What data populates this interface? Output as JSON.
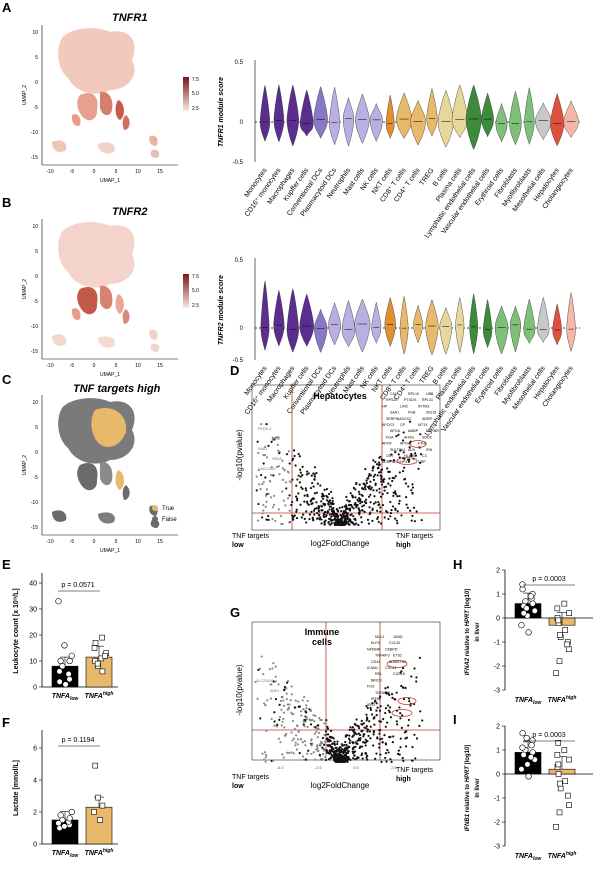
{
  "panels": {
    "A": {
      "label": "A",
      "title": "TNFR1",
      "xaxis": "UMAP_1",
      "yaxis": "UMAP_2",
      "colorbar": [
        "7.5",
        "5.0",
        "2.5"
      ],
      "xticks": [
        "-10",
        "-5",
        "0",
        "5",
        "10",
        "15"
      ],
      "yticks": [
        "10",
        "5",
        "0",
        "-5",
        "-10",
        "-15"
      ]
    },
    "B": {
      "label": "B",
      "title": "TNFR2",
      "xaxis": "UMAP_1",
      "yaxis": "UMAP_2",
      "colorbar": [
        "7.5",
        "5.0",
        "2.5"
      ],
      "xticks": [
        "-10",
        "-5",
        "0",
        "5",
        "10",
        "15"
      ],
      "yticks": [
        "10",
        "5",
        "0",
        "-5",
        "-10",
        "-15"
      ]
    },
    "C": {
      "label": "C",
      "title": "TNF targets high",
      "xaxis": "UMAP_1",
      "yaxis": "UMAP_2",
      "legend": [
        {
          "name": "True",
          "color": "#e8b96b"
        },
        {
          "name": "False",
          "color": "#6b6b6b"
        }
      ],
      "xticks": [
        "-10",
        "-5",
        "0",
        "5",
        "10",
        "15"
      ],
      "yticks": [
        "10",
        "5",
        "0",
        "-5",
        "-10",
        "-15"
      ]
    },
    "D": {
      "label": "D",
      "title": "Hepatocytes",
      "xlabel": "log2FoldChange",
      "ylabel": "-log10(pvalue)",
      "left": "TNF targets",
      "left_b": "low",
      "right": "TNF targets",
      "right_b": "high",
      "genes_right": [
        "CIU",
        "RPS23",
        "HP",
        "SAA1",
        "SERPINA3",
        "APOC3",
        "APOA",
        "FGA",
        "APOF",
        "SULT2A1",
        "OGT",
        "SERPINC1",
        "RPL10",
        "PTGDS",
        "LINC",
        "FGB",
        "CXC",
        "CP",
        "AMBP",
        "AHSG",
        "APOH",
        "ALB",
        "HLA-B",
        "HPX",
        "UBB",
        "RPL31",
        "IFITM3",
        "ISG15",
        "ADRP",
        "MT1X",
        "MTRNR",
        "SOD2",
        "FTH1",
        "IFI6",
        "C3",
        "CRP"
      ],
      "genes_left": [
        "PKD1L3",
        "CPM",
        "NAB1",
        "NR4A",
        "LINC01057"
      ]
    },
    "E": {
      "label": "E",
      "ylabel": "Leukocyte count [x 10⁹/L]",
      "pvalue": "p = 0.0571",
      "yticks": [
        "0",
        "10",
        "20",
        "30",
        "40"
      ]
    },
    "F": {
      "label": "F",
      "ylabel": "Lactate [mmol/L]",
      "pvalue": "p = 0.1194",
      "yticks": [
        "0",
        "2",
        "4",
        "6"
      ]
    },
    "G": {
      "label": "G",
      "title": "Immune",
      "title_b": "cells",
      "xlabel": "log2FoldChange",
      "ylabel": "-log10(pvalue)",
      "left": "TNF targets",
      "left_b": "low",
      "right": "TNF targets",
      "right_b": "high",
      "genes_right": [
        "MCL1",
        "KLF6",
        "NFKBIA",
        "TNFAIP3",
        "CD44",
        "ICAM1",
        "REL",
        "BIRC3",
        "FOS",
        "TNFAIP2",
        "IRF1",
        "IER3",
        "JUND",
        "CCL20",
        "CEBPD",
        "ETS2",
        "ADAMTS9",
        "CXCL1",
        "CXCL8"
      ],
      "genes_left": [
        "SLC22A16",
        "ANK1"
      ],
      "xticks": [
        "-5.0",
        "-2.5",
        "0.0",
        "2.5"
      ]
    },
    "H": {
      "label": "H",
      "ylabel_a": "IFNA2",
      "ylabel_b": " relative to ",
      "ylabel_c": "HPRT",
      "ylabel_d": " [log10]",
      "ylabel_e": "in liver",
      "pvalue": "p = 0.0003",
      "yticks": [
        "2",
        "1",
        "0",
        "-1",
        "-2",
        "-3"
      ]
    },
    "I": {
      "label": "I",
      "ylabel_a": "IFNB1",
      "ylabel_b": " relative to ",
      "ylabel_c": "HPRT",
      "ylabel_d": " [log10]",
      "ylabel_e": "in liver",
      "pvalue": "p = 0.0003",
      "yticks": [
        "2",
        "1",
        "0",
        "-1",
        "-2",
        "-3"
      ]
    }
  },
  "groups": {
    "low": "TNFA",
    "low_sub": "low",
    "high": "TNFA",
    "high_sub": "high"
  },
  "violin": {
    "cell_types": [
      "Monocytes",
      "CD16⁺ monocytes",
      "Macrophages",
      "Kupffer cells",
      "Conventional DCs",
      "Plasmacytoid DCs",
      "Neutrophils",
      "Mast cells",
      "NK cells",
      "NKT cells",
      "CD8⁺ T cells",
      "CD4⁺ T cells",
      "TREG",
      "B cells",
      "Plasma cells",
      "Lymphatic endothelial cells",
      "Vascular endothelial cells",
      "Erythroid cells",
      "Fibroblasts",
      "Myofibroblasts",
      "Mesothelial cells",
      "Hepatocytes",
      "Cholangiocytes"
    ],
    "colors": [
      "#5b2d8e",
      "#5b2d8e",
      "#5b2d8e",
      "#5b2d8e",
      "#8a78c4",
      "#b9afe0",
      "#b9afe0",
      "#b9afe0",
      "#b9afe0",
      "#e09030",
      "#e8b96b",
      "#e8b96b",
      "#e8b96b",
      "#e8d79b",
      "#e8d79b",
      "#3d8a3a",
      "#3d8a3a",
      "#7ec07a",
      "#7ec07a",
      "#7ec07a",
      "#c8c8c8",
      "#e0503d",
      "#f5b8a8"
    ],
    "tnfr1": {
      "ylabel": "TNFR1 module score",
      "yticks": [
        "0.5",
        "0",
        "-0.5"
      ],
      "ylim": [
        -0.5,
        0.5
      ]
    },
    "tnfr2": {
      "ylabel": "TNFR2 module score",
      "yticks": [
        "0.5",
        "0",
        "-0.5"
      ],
      "ylim": [
        -0.5,
        0.5
      ]
    }
  },
  "chart_data": [
    {
      "type": "bar",
      "title": "Leukocyte count",
      "categories": [
        "TNFA low",
        "TNFA high"
      ],
      "values": [
        8,
        11.5
      ],
      "ylim": [
        0,
        40
      ],
      "ylabel": "Leukocyte count [x 10^9/L]"
    },
    {
      "type": "bar",
      "title": "Lactate",
      "categories": [
        "TNFA low",
        "TNFA high"
      ],
      "values": [
        1.5,
        2.3
      ],
      "ylim": [
        0,
        6
      ],
      "ylabel": "Lactate [mmol/L]"
    },
    {
      "type": "bar",
      "title": "IFNA2",
      "categories": [
        "TNFA low",
        "TNFA high"
      ],
      "values": [
        0.6,
        -0.3
      ],
      "ylim": [
        -3,
        2
      ]
    },
    {
      "type": "bar",
      "title": "IFNB1",
      "categories": [
        "TNFA low",
        "TNFA high"
      ],
      "values": [
        0.9,
        0.2
      ],
      "ylim": [
        -3,
        2
      ]
    }
  ]
}
